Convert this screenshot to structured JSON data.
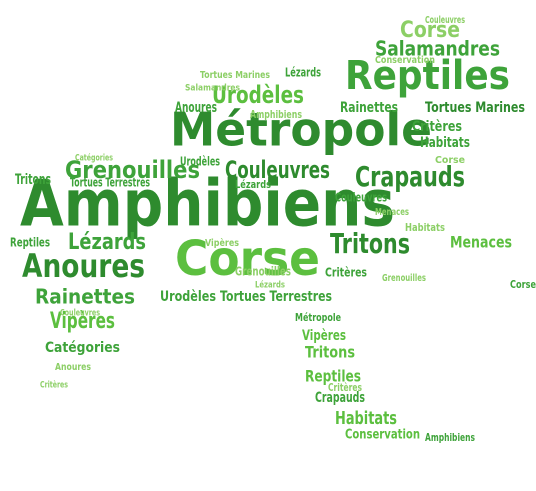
{
  "words": [
    "Amphibiens",
    "Métropole",
    "Corse",
    "Reptiles",
    "Anoures",
    "Lézards",
    "Tritons",
    "Crapauds",
    "Couleuvres",
    "Grenouilles",
    "Urodèles",
    "Salamandres",
    "Corse",
    "Rainettes",
    "Vipères",
    "Catégories",
    "Menaces",
    "Critères",
    "Habitats",
    "Tortues Marines",
    "Rainettes",
    "Tortues Terrestres",
    "Urodèles",
    "Tritons",
    "Reptiles",
    "Crapauds",
    "Habitats",
    "Conservation",
    "Vipères",
    "Anoures",
    "Amphibiens",
    "Lézards",
    "Tortues Marines",
    "Critères",
    "Grenouilles",
    "Reptiles",
    "Tritons",
    "Couleuvres",
    "Métropole",
    "Conservation",
    "Salamandres",
    "Amphibiens",
    "Corse",
    "Critères",
    "Urodèles",
    "Tortues Terrestres",
    "Lézards",
    "Vipères",
    "Couleuvres",
    "Habitats",
    "Menaces",
    "Grenouilles",
    "Couleuvres",
    "Critères",
    "Catégories",
    "Anoures",
    "Corse",
    "Lézards"
  ]
}
